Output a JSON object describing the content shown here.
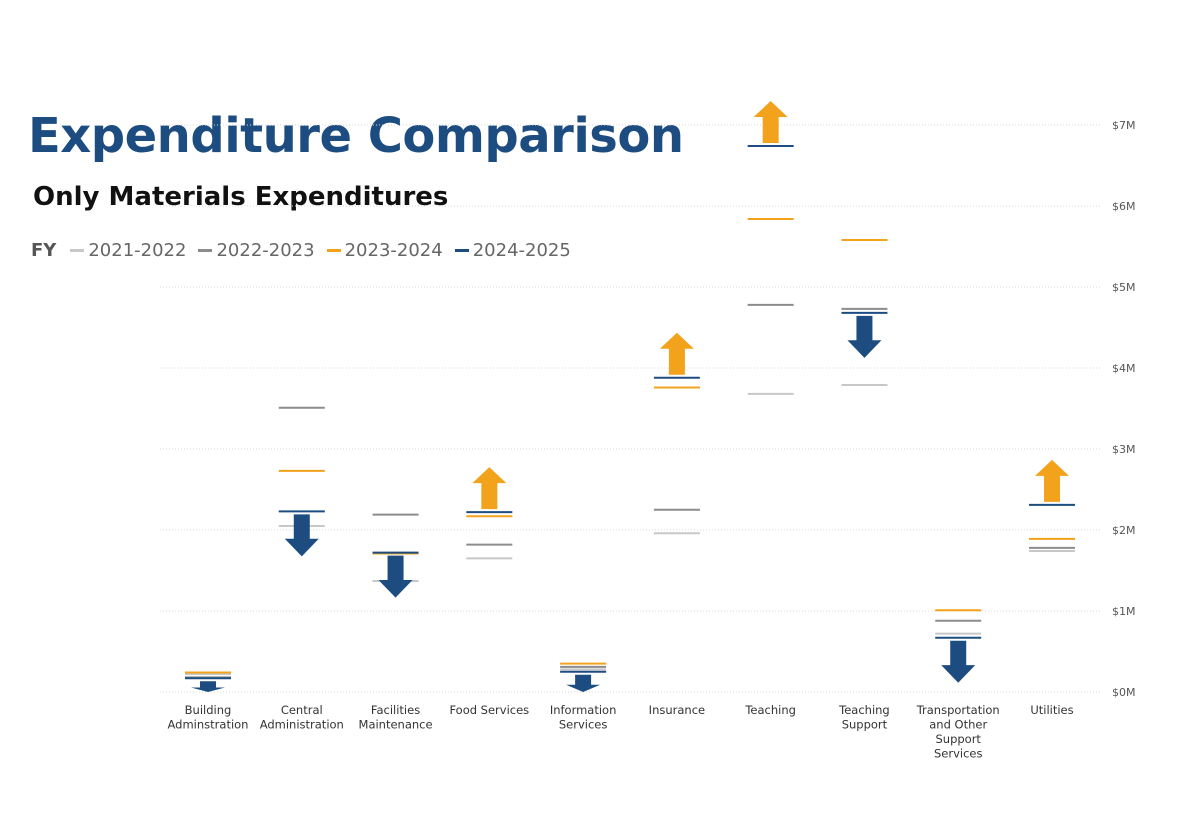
{
  "title": "Expenditure Comparison",
  "subtitle": "Only Materials Expenditures",
  "legend": {
    "title": "FY",
    "items": [
      {
        "label": "2021-2022",
        "color": "#c8c8c8"
      },
      {
        "label": "2022-2023",
        "color": "#8c8c8c"
      },
      {
        "label": "2023-2024",
        "color": "#f2a31b"
      },
      {
        "label": "2024-2025",
        "color": "#1d4d80"
      }
    ]
  },
  "chart_data": {
    "type": "line",
    "title": "Expenditure Comparison",
    "subtitle": "Only Materials Expenditures",
    "ylim": [
      0,
      7
    ],
    "yticks": [
      "$0M",
      "$1M",
      "$2M",
      "$3M",
      "$4M",
      "$5M",
      "$6M",
      "$7M"
    ],
    "legend_position": "top-left",
    "grid": true,
    "up_color": "#f2a31b",
    "down_color": "#1d4d80",
    "categories": [
      [
        "Building",
        "Adminstration"
      ],
      [
        "Central",
        "Administration"
      ],
      [
        "Facilities",
        "Maintenance"
      ],
      [
        "Food Services"
      ],
      [
        "Information",
        "Services"
      ],
      [
        "Insurance"
      ],
      [
        "Teaching"
      ],
      [
        "Teaching",
        "Support"
      ],
      [
        "Transportation",
        "and Other",
        "Support",
        "Services"
      ],
      [
        "Utilities"
      ]
    ],
    "series": [
      {
        "name": "2021-2022",
        "values": [
          0.22,
          2.05,
          1.37,
          1.65,
          0.28,
          1.96,
          3.68,
          3.79,
          0.72,
          1.74
        ]
      },
      {
        "name": "2022-2023",
        "values": [
          0.18,
          3.51,
          2.19,
          1.82,
          0.31,
          2.25,
          4.78,
          4.73,
          0.88,
          1.78
        ]
      },
      {
        "name": "2023-2024",
        "values": [
          0.24,
          2.73,
          1.71,
          2.17,
          0.35,
          3.76,
          5.84,
          5.58,
          1.01,
          1.89
        ]
      },
      {
        "name": "2024-2025",
        "values": [
          0.17,
          2.23,
          1.72,
          2.22,
          0.25,
          3.88,
          6.74,
          4.68,
          0.67,
          2.31
        ]
      }
    ],
    "change_direction": [
      "down",
      "down",
      "down",
      "up",
      "down",
      "up",
      "up",
      "down",
      "down",
      "up"
    ]
  }
}
